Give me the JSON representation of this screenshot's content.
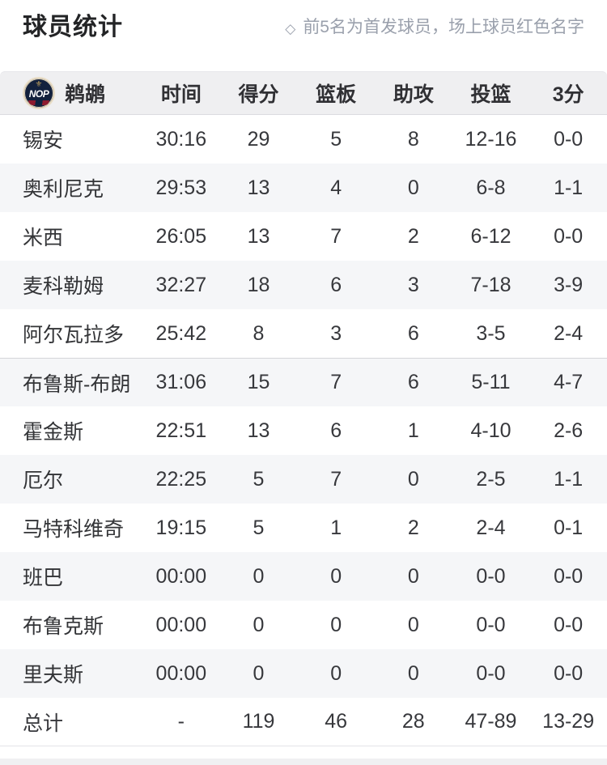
{
  "page": {
    "title": "球员统计",
    "note_icon": "◇",
    "note": "前5名为首发球员，场上球员红色名字"
  },
  "table": {
    "team": {
      "name": "鹈鹕",
      "logo_text": "NOP",
      "logo_fleur": "⚜"
    },
    "columns": [
      "时间",
      "得分",
      "篮板",
      "助攻",
      "投篮",
      "3分"
    ],
    "starters_count": 5,
    "rows": [
      {
        "name": "锡安",
        "time": "30:16",
        "pts": "29",
        "reb": "5",
        "ast": "8",
        "fg": "12-16",
        "three": "0-0"
      },
      {
        "name": "奥利尼克",
        "time": "29:53",
        "pts": "13",
        "reb": "4",
        "ast": "0",
        "fg": "6-8",
        "three": "1-1"
      },
      {
        "name": "米西",
        "time": "26:05",
        "pts": "13",
        "reb": "7",
        "ast": "2",
        "fg": "6-12",
        "three": "0-0"
      },
      {
        "name": "麦科勒姆",
        "time": "32:27",
        "pts": "18",
        "reb": "6",
        "ast": "3",
        "fg": "7-18",
        "three": "3-9"
      },
      {
        "name": "阿尔瓦拉多",
        "time": "25:42",
        "pts": "8",
        "reb": "3",
        "ast": "6",
        "fg": "3-5",
        "three": "2-4"
      },
      {
        "name": "布鲁斯-布朗",
        "time": "31:06",
        "pts": "15",
        "reb": "7",
        "ast": "6",
        "fg": "5-11",
        "three": "4-7"
      },
      {
        "name": "霍金斯",
        "time": "22:51",
        "pts": "13",
        "reb": "6",
        "ast": "1",
        "fg": "4-10",
        "three": "2-6"
      },
      {
        "name": "厄尔",
        "time": "22:25",
        "pts": "5",
        "reb": "7",
        "ast": "0",
        "fg": "2-5",
        "three": "1-1"
      },
      {
        "name": "马特科维奇",
        "time": "19:15",
        "pts": "5",
        "reb": "1",
        "ast": "2",
        "fg": "2-4",
        "three": "0-1"
      },
      {
        "name": "班巴",
        "time": "00:00",
        "pts": "0",
        "reb": "0",
        "ast": "0",
        "fg": "0-0",
        "three": "0-0"
      },
      {
        "name": "布鲁克斯",
        "time": "00:00",
        "pts": "0",
        "reb": "0",
        "ast": "0",
        "fg": "0-0",
        "three": "0-0"
      },
      {
        "name": "里夫斯",
        "time": "00:00",
        "pts": "0",
        "reb": "0",
        "ast": "0",
        "fg": "0-0",
        "three": "0-0"
      }
    ],
    "totals": {
      "name": "总计",
      "time": "-",
      "pts": "119",
      "reb": "46",
      "ast": "28",
      "fg": "47-89",
      "three": "13-29"
    }
  },
  "colors": {
    "brand_navy": "#0c2340",
    "brand_gold": "#b4975a",
    "brand_red": "#c8102e",
    "header_bg": "#efeff1",
    "alt_row_bg": "#f5f6f8",
    "note_gray": "#9aa0ac",
    "text_dark": "#37383c"
  }
}
